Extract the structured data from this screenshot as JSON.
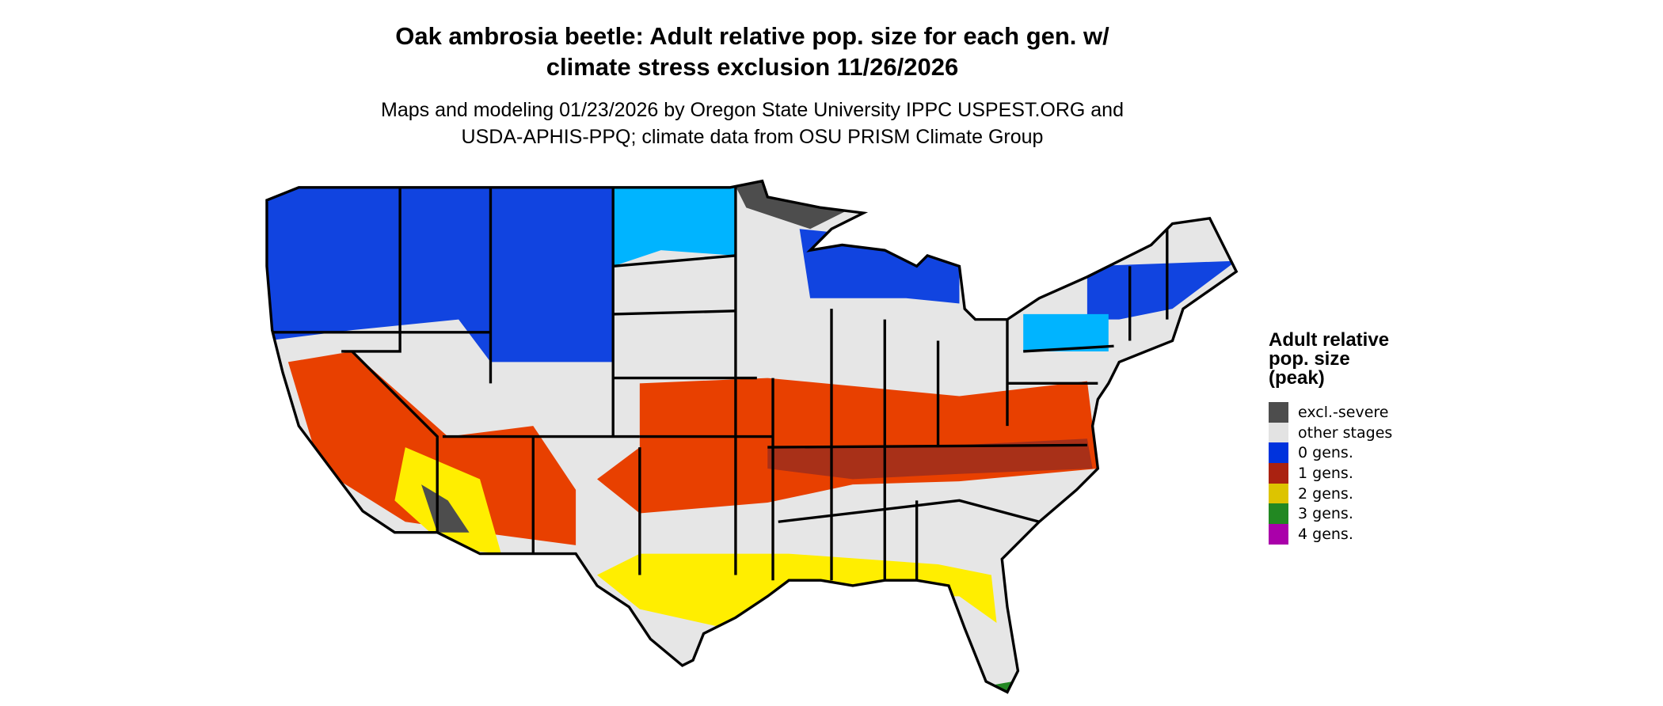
{
  "title_line1": "Oak ambrosia beetle: Adult relative pop. size for each gen. w/",
  "title_line2": "climate stress exclusion 11/26/2026",
  "subtitle_line1": "Maps and modeling 01/23/2026 by Oregon State University IPPC USPEST.ORG and",
  "subtitle_line2": "USDA-APHIS-PPQ; climate data from OSU PRISM Climate Group",
  "legend": {
    "title_line1": "Adult relative",
    "title_line2": "pop. size",
    "title_line3": "(peak)",
    "items": [
      {
        "label": "excl.-severe",
        "color": "#4d4d4d"
      },
      {
        "label": "other stages",
        "color": "#e3e3e3"
      },
      {
        "label": "0 gens.",
        "color": "#0033dd"
      },
      {
        "label": "1 gens.",
        "color": "#aa2211"
      },
      {
        "label": "2 gens.",
        "color": "#ddc400"
      },
      {
        "label": "3 gens.",
        "color": "#228822"
      },
      {
        "label": "4 gens.",
        "color": "#aa00aa"
      }
    ]
  },
  "map_colors": {
    "background": "#e6e6e6",
    "blue": "#1144e0",
    "light_blue": "#00b4ff",
    "red": "#e84000",
    "dark_red": "#a83018",
    "yellow": "#ffee00",
    "dark_gray": "#4d4d4d",
    "green": "#228822",
    "border": "#000000"
  }
}
